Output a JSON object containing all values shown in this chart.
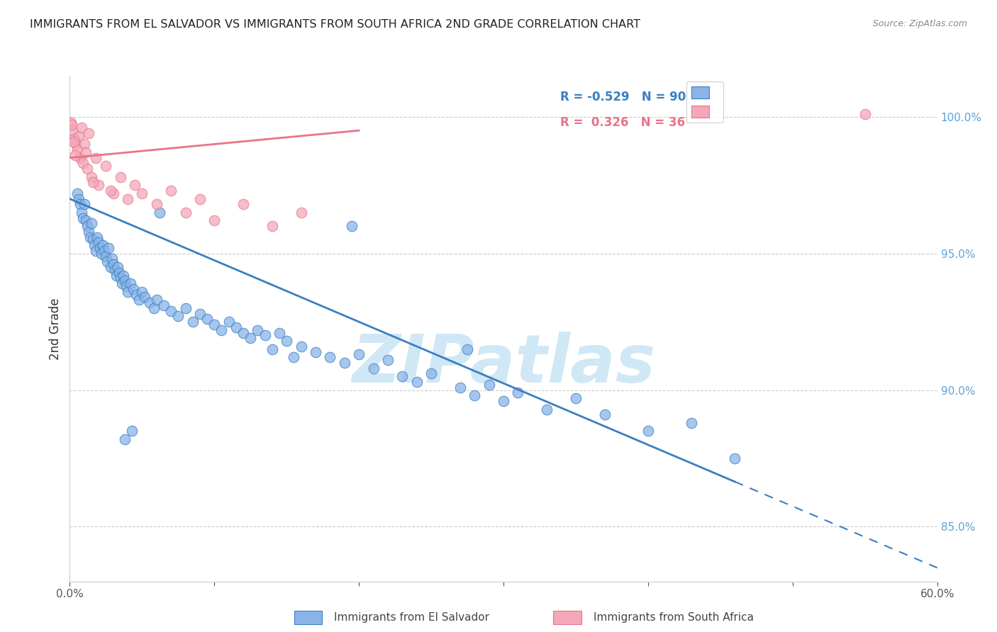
{
  "title": "IMMIGRANTS FROM EL SALVADOR VS IMMIGRANTS FROM SOUTH AFRICA 2ND GRADE CORRELATION CHART",
  "source": "Source: ZipAtlas.com",
  "ylabel": "2nd Grade",
  "x_range": [
    0.0,
    60.0
  ],
  "y_range": [
    83.0,
    101.5
  ],
  "legend_blue_label": "Immigrants from El Salvador",
  "legend_pink_label": "Immigrants from South Africa",
  "R_blue": -0.529,
  "N_blue": 90,
  "R_pink": 0.326,
  "N_pink": 36,
  "blue_color": "#89b4e8",
  "pink_color": "#f4a7b9",
  "blue_line_color": "#3a7fc1",
  "pink_line_color": "#e8748a",
  "watermark": "ZIPatlas",
  "watermark_color": "#d0e8f5",
  "background_color": "#ffffff",
  "blue_dots": [
    [
      0.5,
      97.2
    ],
    [
      0.6,
      97.0
    ],
    [
      0.7,
      96.8
    ],
    [
      0.8,
      96.5
    ],
    [
      0.9,
      96.3
    ],
    [
      1.0,
      96.8
    ],
    [
      1.1,
      96.2
    ],
    [
      1.2,
      96.0
    ],
    [
      1.3,
      95.8
    ],
    [
      1.4,
      95.6
    ],
    [
      1.5,
      96.1
    ],
    [
      1.6,
      95.5
    ],
    [
      1.7,
      95.3
    ],
    [
      1.8,
      95.1
    ],
    [
      1.9,
      95.6
    ],
    [
      2.0,
      95.4
    ],
    [
      2.1,
      95.2
    ],
    [
      2.2,
      95.0
    ],
    [
      2.3,
      95.3
    ],
    [
      2.4,
      95.1
    ],
    [
      2.5,
      94.9
    ],
    [
      2.6,
      94.7
    ],
    [
      2.7,
      95.2
    ],
    [
      2.8,
      94.5
    ],
    [
      2.9,
      94.8
    ],
    [
      3.0,
      94.6
    ],
    [
      3.1,
      94.4
    ],
    [
      3.2,
      94.2
    ],
    [
      3.3,
      94.5
    ],
    [
      3.4,
      94.3
    ],
    [
      3.5,
      94.1
    ],
    [
      3.6,
      93.9
    ],
    [
      3.7,
      94.2
    ],
    [
      3.8,
      94.0
    ],
    [
      3.9,
      93.8
    ],
    [
      4.0,
      93.6
    ],
    [
      4.2,
      93.9
    ],
    [
      4.4,
      93.7
    ],
    [
      4.6,
      93.5
    ],
    [
      4.8,
      93.3
    ],
    [
      5.0,
      93.6
    ],
    [
      5.2,
      93.4
    ],
    [
      5.5,
      93.2
    ],
    [
      5.8,
      93.0
    ],
    [
      6.0,
      93.3
    ],
    [
      6.5,
      93.1
    ],
    [
      7.0,
      92.9
    ],
    [
      7.5,
      92.7
    ],
    [
      8.0,
      93.0
    ],
    [
      8.5,
      92.5
    ],
    [
      9.0,
      92.8
    ],
    [
      9.5,
      92.6
    ],
    [
      10.0,
      92.4
    ],
    [
      10.5,
      92.2
    ],
    [
      11.0,
      92.5
    ],
    [
      11.5,
      92.3
    ],
    [
      12.0,
      92.1
    ],
    [
      12.5,
      91.9
    ],
    [
      13.0,
      92.2
    ],
    [
      13.5,
      92.0
    ],
    [
      14.0,
      91.5
    ],
    [
      14.5,
      92.1
    ],
    [
      15.0,
      91.8
    ],
    [
      15.5,
      91.2
    ],
    [
      16.0,
      91.6
    ],
    [
      17.0,
      91.4
    ],
    [
      18.0,
      91.2
    ],
    [
      19.0,
      91.0
    ],
    [
      20.0,
      91.3
    ],
    [
      21.0,
      90.8
    ],
    [
      22.0,
      91.1
    ],
    [
      23.0,
      90.5
    ],
    [
      24.0,
      90.3
    ],
    [
      25.0,
      90.6
    ],
    [
      27.0,
      90.1
    ],
    [
      28.0,
      89.8
    ],
    [
      29.0,
      90.2
    ],
    [
      30.0,
      89.6
    ],
    [
      31.0,
      89.9
    ],
    [
      33.0,
      89.3
    ],
    [
      35.0,
      89.7
    ],
    [
      37.0,
      89.1
    ],
    [
      40.0,
      88.5
    ],
    [
      43.0,
      88.8
    ],
    [
      46.0,
      87.5
    ],
    [
      4.3,
      88.5
    ],
    [
      6.2,
      96.5
    ],
    [
      3.8,
      88.2
    ],
    [
      19.5,
      96.0
    ],
    [
      27.5,
      91.5
    ]
  ],
  "pink_dots": [
    [
      0.1,
      99.8
    ],
    [
      0.2,
      99.5
    ],
    [
      0.3,
      99.2
    ],
    [
      0.4,
      99.0
    ],
    [
      0.5,
      98.8
    ],
    [
      0.6,
      99.3
    ],
    [
      0.7,
      98.5
    ],
    [
      0.8,
      99.6
    ],
    [
      0.9,
      98.3
    ],
    [
      1.0,
      99.0
    ],
    [
      1.1,
      98.7
    ],
    [
      1.2,
      98.1
    ],
    [
      1.3,
      99.4
    ],
    [
      1.5,
      97.8
    ],
    [
      1.8,
      98.5
    ],
    [
      2.0,
      97.5
    ],
    [
      2.5,
      98.2
    ],
    [
      3.0,
      97.2
    ],
    [
      3.5,
      97.8
    ],
    [
      4.0,
      97.0
    ],
    [
      4.5,
      97.5
    ],
    [
      5.0,
      97.2
    ],
    [
      6.0,
      96.8
    ],
    [
      7.0,
      97.3
    ],
    [
      8.0,
      96.5
    ],
    [
      9.0,
      97.0
    ],
    [
      10.0,
      96.2
    ],
    [
      12.0,
      96.8
    ],
    [
      14.0,
      96.0
    ],
    [
      16.0,
      96.5
    ],
    [
      0.15,
      99.7
    ],
    [
      0.25,
      99.1
    ],
    [
      0.35,
      98.6
    ],
    [
      55.0,
      100.1
    ],
    [
      1.6,
      97.6
    ],
    [
      2.8,
      97.3
    ]
  ],
  "blue_line": {
    "x0": 0.0,
    "y0": 97.0,
    "x1": 60.0,
    "y1": 83.5
  },
  "pink_line": {
    "x0": 0.0,
    "y0": 98.5,
    "x1": 20.0,
    "y1": 99.5
  },
  "blue_solid_end_x": 46.0,
  "y_ticks": [
    85.0,
    90.0,
    95.0,
    100.0
  ],
  "y_tick_labels": [
    "85.0%",
    "90.0%",
    "95.0%",
    "100.0%"
  ]
}
